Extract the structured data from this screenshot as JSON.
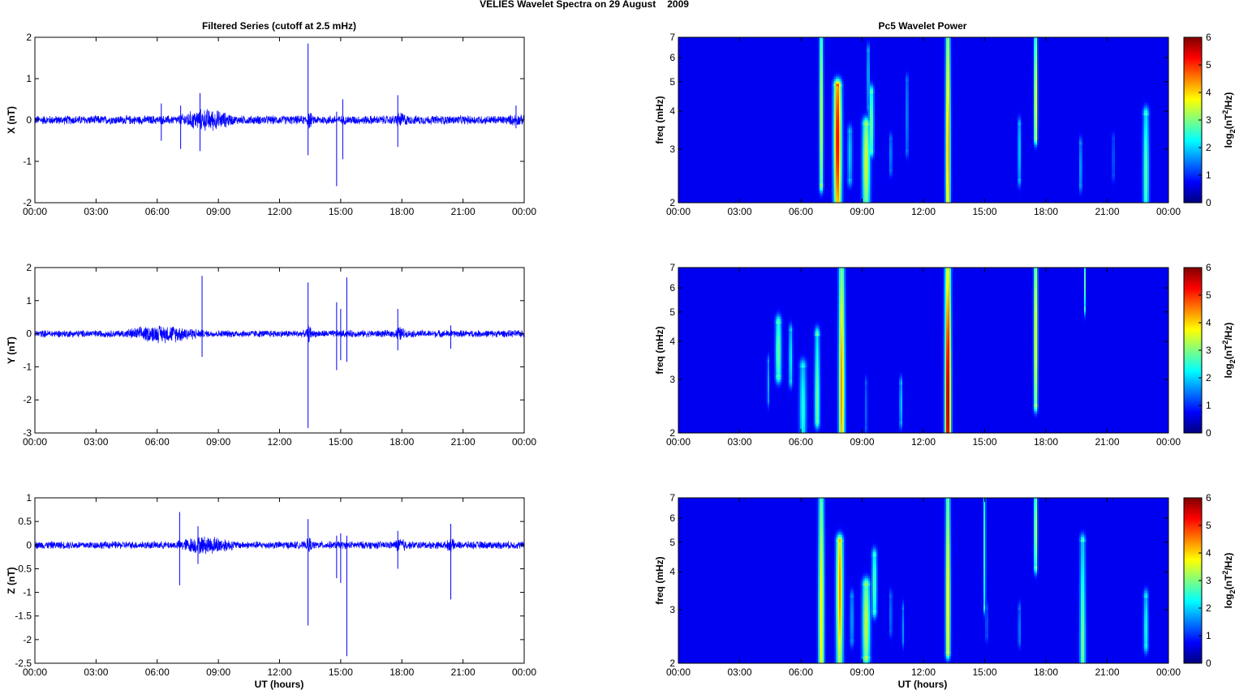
{
  "figure": {
    "suptitle_station": "VELIES Wavelet Spectra on 29 August",
    "suptitle_year": "2009",
    "left_title": "Filtered Series (cutoff at 2.5 mHz)",
    "right_title": "Pc5 Wavelet Power",
    "xlabel": "UT (hours)"
  },
  "colors": {
    "trace": "#0000ff",
    "colormap": [
      "#00007f",
      "#0000ff",
      "#007fff",
      "#00ffff",
      "#7fff7f",
      "#ffff00",
      "#ff7f00",
      "#ff0000",
      "#7f0000"
    ]
  },
  "chart_data": [
    {
      "type": "line",
      "component": "X",
      "ylabel": "X (nT)",
      "x_tick_labels": [
        "00:00",
        "03:00",
        "06:00",
        "09:00",
        "12:00",
        "15:00",
        "18:00",
        "21:00",
        "00:00"
      ],
      "xlim_hours": [
        0,
        24
      ],
      "ylim": [
        -2,
        2
      ],
      "y_ticks": [
        -2,
        -1,
        0,
        1,
        2
      ],
      "background_amplitude": 0.12,
      "active_intervals": [
        {
          "start": 7.0,
          "end": 9.8,
          "amplitude": 0.3
        },
        {
          "start": 13.3,
          "end": 13.6,
          "amplitude": 0.25
        },
        {
          "start": 17.6,
          "end": 18.3,
          "amplitude": 0.22
        },
        {
          "start": 23.2,
          "end": 24.0,
          "amplitude": 0.16
        }
      ],
      "spikes": [
        {
          "t": 6.2,
          "min": -0.5,
          "max": 0.4
        },
        {
          "t": 7.15,
          "min": -0.7,
          "max": 0.35
        },
        {
          "t": 8.1,
          "min": -0.75,
          "max": 0.65
        },
        {
          "t": 13.4,
          "min": -0.85,
          "max": 1.85
        },
        {
          "t": 14.8,
          "min": -1.6,
          "max": 0.2
        },
        {
          "t": 15.1,
          "min": -0.95,
          "max": 0.5
        },
        {
          "t": 17.8,
          "min": -0.65,
          "max": 0.6
        },
        {
          "t": 23.6,
          "min": -0.2,
          "max": 0.35
        }
      ]
    },
    {
      "type": "line",
      "component": "Y",
      "ylabel": "Y (nT)",
      "x_tick_labels": [
        "00:00",
        "03:00",
        "06:00",
        "09:00",
        "12:00",
        "15:00",
        "18:00",
        "21:00",
        "00:00"
      ],
      "xlim_hours": [
        0,
        24
      ],
      "ylim": [
        -3,
        2
      ],
      "y_ticks": [
        -3,
        -2,
        -1,
        0,
        1,
        2
      ],
      "background_amplitude": 0.12,
      "active_intervals": [
        {
          "start": 4.3,
          "end": 8.3,
          "amplitude": 0.3
        },
        {
          "start": 13.3,
          "end": 13.6,
          "amplitude": 0.3
        },
        {
          "start": 17.6,
          "end": 18.2,
          "amplitude": 0.25
        }
      ],
      "spikes": [
        {
          "t": 8.2,
          "min": -0.7,
          "max": 1.75
        },
        {
          "t": 13.4,
          "min": -2.85,
          "max": 1.55
        },
        {
          "t": 14.8,
          "min": -1.1,
          "max": 0.95
        },
        {
          "t": 15.0,
          "min": -0.8,
          "max": 0.75
        },
        {
          "t": 15.3,
          "min": -0.85,
          "max": 1.7
        },
        {
          "t": 17.8,
          "min": -0.5,
          "max": 0.75
        },
        {
          "t": 20.4,
          "min": -0.45,
          "max": 0.25
        }
      ]
    },
    {
      "type": "line",
      "component": "Z",
      "ylabel": "Z (nT)",
      "x_tick_labels": [
        "00:00",
        "03:00",
        "06:00",
        "09:00",
        "12:00",
        "15:00",
        "18:00",
        "21:00",
        "00:00"
      ],
      "xlim_hours": [
        0,
        24
      ],
      "ylim": [
        -2.5,
        1
      ],
      "y_ticks": [
        -2.5,
        -2,
        -1.5,
        -1,
        -0.5,
        0,
        0.5,
        1
      ],
      "background_amplitude": 0.09,
      "active_intervals": [
        {
          "start": 6.9,
          "end": 9.9,
          "amplitude": 0.22
        },
        {
          "start": 13.3,
          "end": 13.6,
          "amplitude": 0.2
        },
        {
          "start": 17.6,
          "end": 18.3,
          "amplitude": 0.18
        },
        {
          "start": 20.2,
          "end": 20.6,
          "amplitude": 0.18
        }
      ],
      "spikes": [
        {
          "t": 7.1,
          "min": -0.85,
          "max": 0.7
        },
        {
          "t": 8.0,
          "min": -0.4,
          "max": 0.4
        },
        {
          "t": 13.4,
          "min": -1.7,
          "max": 0.55
        },
        {
          "t": 14.8,
          "min": -0.7,
          "max": 0.2
        },
        {
          "t": 15.0,
          "min": -0.8,
          "max": 0.25
        },
        {
          "t": 15.3,
          "min": -2.35,
          "max": 0.2
        },
        {
          "t": 17.8,
          "min": -0.5,
          "max": 0.3
        },
        {
          "t": 20.4,
          "min": -1.15,
          "max": 0.45
        }
      ]
    },
    {
      "type": "heatmap",
      "component": "X",
      "ylabel": "freq (mHz)",
      "y_scale": "log",
      "ylim_mhz": [
        2,
        7
      ],
      "y_ticks": [
        2,
        3,
        4,
        5,
        6,
        7
      ],
      "x_tick_labels": [
        "00:00",
        "03:00",
        "06:00",
        "09:00",
        "12:00",
        "15:00",
        "18:00",
        "21:00",
        "00:00"
      ],
      "xlim_hours": [
        0,
        24
      ],
      "colorbar": {
        "label": "log2(nT^2/Hz)",
        "range": [
          0,
          6
        ],
        "ticks": [
          0,
          1,
          2,
          3,
          4,
          5,
          6
        ]
      },
      "blobs": [
        {
          "t": 7.0,
          "f_low": 2.3,
          "f_high": 7.0,
          "peak": 3.3,
          "width": 0.09,
          "peak_f": 3.8
        },
        {
          "t": 7.8,
          "f_low": 2.0,
          "f_high": 4.8,
          "peak": 5.3,
          "width": 0.18,
          "peak_f": 3.2
        },
        {
          "t": 9.2,
          "f_low": 2.0,
          "f_high": 3.6,
          "peak": 3.3,
          "width": 0.18,
          "peak_f": 2.7
        },
        {
          "t": 9.45,
          "f_low": 3.0,
          "f_high": 4.6,
          "peak": 2.6,
          "width": 0.12,
          "peak_f": 3.6
        },
        {
          "t": 9.3,
          "f_low": 4.2,
          "f_high": 6.3,
          "peak": 1.5,
          "width": 0.07,
          "peak_f": 5.2
        },
        {
          "t": 8.4,
          "f_low": 2.4,
          "f_high": 3.4,
          "peak": 1.5,
          "width": 0.12,
          "peak_f": 2.9
        },
        {
          "t": 10.4,
          "f_low": 2.6,
          "f_high": 3.2,
          "peak": 1.1,
          "width": 0.08,
          "peak_f": 2.9
        },
        {
          "t": 11.2,
          "f_low": 3.0,
          "f_high": 5.0,
          "peak": 1.3,
          "width": 0.06,
          "peak_f": 3.9
        },
        {
          "t": 13.2,
          "f_low": 2.0,
          "f_high": 7.0,
          "peak": 4.3,
          "width": 0.11,
          "peak_f": 3.0
        },
        {
          "t": 16.7,
          "f_low": 2.4,
          "f_high": 3.6,
          "peak": 1.6,
          "width": 0.08,
          "peak_f": 3.0
        },
        {
          "t": 17.5,
          "f_low": 3.3,
          "f_high": 7.0,
          "peak": 3.8,
          "width": 0.08,
          "peak_f": 4.3
        },
        {
          "t": 19.7,
          "f_low": 2.3,
          "f_high": 3.1,
          "peak": 1.4,
          "width": 0.07,
          "peak_f": 2.6
        },
        {
          "t": 21.3,
          "f_low": 2.5,
          "f_high": 3.2,
          "peak": 0.9,
          "width": 0.06,
          "peak_f": 2.8
        },
        {
          "t": 22.9,
          "f_low": 2.0,
          "f_high": 3.9,
          "peak": 2.4,
          "width": 0.14,
          "peak_f": 2.5
        }
      ]
    },
    {
      "type": "heatmap",
      "component": "Y",
      "ylabel": "freq (mHz)",
      "y_scale": "log",
      "ylim_mhz": [
        2,
        7
      ],
      "y_ticks": [
        2,
        3,
        4,
        5,
        6,
        7
      ],
      "x_tick_labels": [
        "00:00",
        "03:00",
        "06:00",
        "09:00",
        "12:00",
        "15:00",
        "18:00",
        "21:00",
        "00:00"
      ],
      "xlim_hours": [
        0,
        24
      ],
      "colorbar": {
        "label": "log2(nT^2/Hz)",
        "range": [
          0,
          6
        ],
        "ticks": [
          0,
          1,
          2,
          3,
          4,
          5,
          6
        ]
      },
      "blobs": [
        {
          "t": 4.4,
          "f_low": 2.6,
          "f_high": 3.4,
          "peak": 1.3,
          "width": 0.06,
          "peak_f": 2.9
        },
        {
          "t": 4.9,
          "f_low": 3.1,
          "f_high": 4.6,
          "peak": 2.6,
          "width": 0.14,
          "peak_f": 3.7
        },
        {
          "t": 5.5,
          "f_low": 3.0,
          "f_high": 4.3,
          "peak": 1.8,
          "width": 0.09,
          "peak_f": 3.5
        },
        {
          "t": 6.1,
          "f_low": 2.0,
          "f_high": 3.3,
          "peak": 2.0,
          "width": 0.16,
          "peak_f": 2.4
        },
        {
          "t": 6.8,
          "f_low": 2.2,
          "f_high": 4.2,
          "peak": 2.6,
          "width": 0.12,
          "peak_f": 2.5
        },
        {
          "t": 8.0,
          "f_low": 2.0,
          "f_high": 7.0,
          "peak": 4.2,
          "width": 0.14,
          "peak_f": 2.8
        },
        {
          "t": 9.2,
          "f_low": 2.1,
          "f_high": 2.9,
          "peak": 0.9,
          "width": 0.06,
          "peak_f": 2.4
        },
        {
          "t": 10.9,
          "f_low": 2.2,
          "f_high": 2.9,
          "peak": 1.6,
          "width": 0.07,
          "peak_f": 2.5
        },
        {
          "t": 13.2,
          "f_low": 2.0,
          "f_high": 7.0,
          "peak": 6.0,
          "width": 0.14,
          "peak_f": 2.5
        },
        {
          "t": 17.5,
          "f_low": 2.5,
          "f_high": 7.0,
          "peak": 3.8,
          "width": 0.09,
          "peak_f": 4.2
        },
        {
          "t": 19.9,
          "f_low": 5.2,
          "f_high": 7.0,
          "peak": 2.4,
          "width": 0.04,
          "peak_f": 6.3
        }
      ]
    },
    {
      "type": "heatmap",
      "component": "Z",
      "ylabel": "freq (mHz)",
      "y_scale": "log",
      "ylim_mhz": [
        2,
        7
      ],
      "y_ticks": [
        2,
        3,
        4,
        5,
        6,
        7
      ],
      "x_tick_labels": [
        "00:00",
        "03:00",
        "06:00",
        "09:00",
        "12:00",
        "15:00",
        "18:00",
        "21:00",
        "00:00"
      ],
      "xlim_hours": [
        0,
        24
      ],
      "colorbar": {
        "label": "log2(nT^2/Hz)",
        "range": [
          0,
          6
        ],
        "ticks": [
          0,
          1,
          2,
          3,
          4,
          5,
          6
        ]
      },
      "blobs": [
        {
          "t": 7.0,
          "f_low": 2.0,
          "f_high": 7.0,
          "peak": 3.8,
          "width": 0.13,
          "peak_f": 2.8
        },
        {
          "t": 7.9,
          "f_low": 2.0,
          "f_high": 5.0,
          "peak": 4.2,
          "width": 0.16,
          "peak_f": 3.5
        },
        {
          "t": 9.2,
          "f_low": 2.1,
          "f_high": 3.6,
          "peak": 3.2,
          "width": 0.18,
          "peak_f": 2.7
        },
        {
          "t": 9.6,
          "f_low": 3.0,
          "f_high": 4.5,
          "peak": 2.4,
          "width": 0.12,
          "peak_f": 3.6
        },
        {
          "t": 8.5,
          "f_low": 2.4,
          "f_high": 3.3,
          "peak": 1.2,
          "width": 0.1,
          "peak_f": 2.8
        },
        {
          "t": 10.4,
          "f_low": 2.6,
          "f_high": 3.3,
          "peak": 1.0,
          "width": 0.07,
          "peak_f": 2.9
        },
        {
          "t": 11.0,
          "f_low": 2.4,
          "f_high": 3.0,
          "peak": 1.1,
          "width": 0.06,
          "peak_f": 2.6
        },
        {
          "t": 13.2,
          "f_low": 2.2,
          "f_high": 7.0,
          "peak": 3.8,
          "width": 0.11,
          "peak_f": 3.2
        },
        {
          "t": 15.0,
          "f_low": 3.1,
          "f_high": 7.0,
          "peak": 2.5,
          "width": 0.05,
          "peak_f": 5.0
        },
        {
          "t": 15.1,
          "f_low": 2.5,
          "f_high": 3.0,
          "peak": 0.9,
          "width": 0.06,
          "peak_f": 2.7
        },
        {
          "t": 16.7,
          "f_low": 2.4,
          "f_high": 3.0,
          "peak": 1.2,
          "width": 0.06,
          "peak_f": 2.6
        },
        {
          "t": 17.5,
          "f_low": 4.2,
          "f_high": 7.0,
          "peak": 3.3,
          "width": 0.08,
          "peak_f": 5.5
        },
        {
          "t": 19.8,
          "f_low": 2.0,
          "f_high": 5.0,
          "peak": 2.6,
          "width": 0.13,
          "peak_f": 2.3
        },
        {
          "t": 22.9,
          "f_low": 2.3,
          "f_high": 3.3,
          "peak": 2.0,
          "width": 0.11,
          "peak_f": 2.6
        }
      ]
    }
  ]
}
